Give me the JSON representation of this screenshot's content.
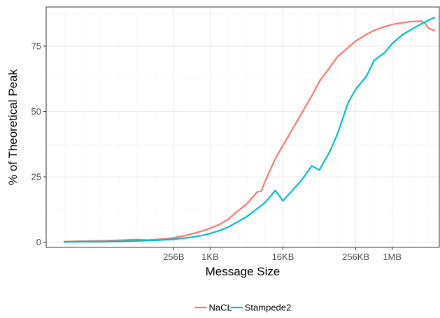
{
  "chart_data": {
    "type": "line",
    "xlabel": "Message Size",
    "ylabel": "% of Theoretical Peak",
    "x_scale": "log2",
    "xlim_bytes": [
      2,
      6291456
    ],
    "ylim": [
      -2,
      90
    ],
    "x_ticks": [
      {
        "value": 256,
        "label": "256B"
      },
      {
        "value": 1024,
        "label": "1KB"
      },
      {
        "value": 16384,
        "label": "16KB"
      },
      {
        "value": 262144,
        "label": "256KB"
      },
      {
        "value": 1048576,
        "label": "1MB"
      }
    ],
    "y_ticks": [
      0,
      25,
      50,
      75
    ],
    "grid": true,
    "legend_position": "bottom",
    "series": [
      {
        "name": "NaCL",
        "color": "#F8766D",
        "points": [
          [
            4,
            0.2
          ],
          [
            8,
            0.4
          ],
          [
            16,
            0.5
          ],
          [
            32,
            0.7
          ],
          [
            64,
            1.0
          ],
          [
            96,
            0.8
          ],
          [
            128,
            1.0
          ],
          [
            192,
            1.3
          ],
          [
            256,
            1.7
          ],
          [
            384,
            2.4
          ],
          [
            512,
            3.2
          ],
          [
            768,
            4.3
          ],
          [
            1024,
            5.3
          ],
          [
            1536,
            7.0
          ],
          [
            2048,
            8.8
          ],
          [
            3072,
            12.3
          ],
          [
            4096,
            14.5
          ],
          [
            6144,
            19.2
          ],
          [
            7168,
            19.5
          ],
          [
            8192,
            23.0
          ],
          [
            12288,
            32.0
          ],
          [
            16384,
            37.0
          ],
          [
            24576,
            44.0
          ],
          [
            32768,
            49.0
          ],
          [
            49152,
            56.0
          ],
          [
            65536,
            61.5
          ],
          [
            98304,
            67.0
          ],
          [
            131072,
            71.0
          ],
          [
            196608,
            74.5
          ],
          [
            262144,
            77.0
          ],
          [
            393216,
            79.5
          ],
          [
            524288,
            81.0
          ],
          [
            786432,
            82.5
          ],
          [
            1048576,
            83.3
          ],
          [
            1572864,
            84.0
          ],
          [
            2097152,
            84.4
          ],
          [
            3145728,
            84.6
          ],
          [
            3670016,
            83.8
          ],
          [
            4194304,
            81.8
          ],
          [
            5242880,
            81.0
          ]
        ]
      },
      {
        "name": "Stampede2",
        "color": "#00BFC4",
        "points": [
          [
            4,
            0.1
          ],
          [
            8,
            0.2
          ],
          [
            16,
            0.2
          ],
          [
            32,
            0.3
          ],
          [
            64,
            0.5
          ],
          [
            128,
            0.7
          ],
          [
            256,
            1.1
          ],
          [
            512,
            1.9
          ],
          [
            768,
            2.6
          ],
          [
            1024,
            3.3
          ],
          [
            1536,
            4.6
          ],
          [
            2048,
            5.8
          ],
          [
            4096,
            9.7
          ],
          [
            8192,
            15.0
          ],
          [
            12288,
            19.8
          ],
          [
            16384,
            15.8
          ],
          [
            32768,
            23.5
          ],
          [
            49152,
            29.2
          ],
          [
            65536,
            27.6
          ],
          [
            98304,
            34.8
          ],
          [
            131072,
            41.5
          ],
          [
            196608,
            53.5
          ],
          [
            262144,
            58.5
          ],
          [
            393216,
            63.5
          ],
          [
            524288,
            69.5
          ],
          [
            786432,
            72.5
          ],
          [
            1048576,
            76.0
          ],
          [
            1572864,
            79.5
          ],
          [
            2097152,
            81.2
          ],
          [
            3145728,
            83.5
          ],
          [
            4194304,
            85.0
          ],
          [
            5242880,
            86.0
          ]
        ]
      }
    ]
  }
}
